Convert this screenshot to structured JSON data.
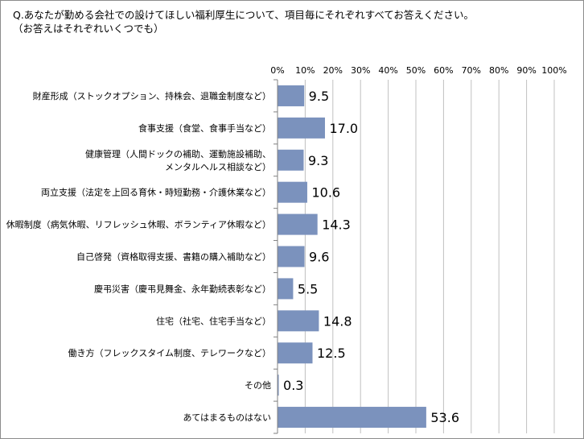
{
  "question": {
    "line1": "Q.あなたが勤める会社での設けてほしい福利厚生について、項目毎にそれぞれすべてお答えください。",
    "line2": "（お答えはそれぞれいくつでも）"
  },
  "chart_data": {
    "type": "bar",
    "orientation": "horizontal",
    "categories": [
      [
        "財産形成（ストックオプション、持株会、退職金制度など）"
      ],
      [
        "食事支援（食堂、食事手当など）"
      ],
      [
        "健康管理（人間ドックの補助、運動施設補助、",
        "メンタルヘルス相談など）"
      ],
      [
        "両立支援（法定を上回る育休・時短勤務・介護休業など）"
      ],
      [
        "休暇制度（病気休暇、リフレッシュ休暇、ボランティア休暇など）"
      ],
      [
        "自己啓発（資格取得支援、書籍の購入補助など）"
      ],
      [
        "慶弔災害（慶弔見舞金、永年勤続表彰など）"
      ],
      [
        "住宅（社宅、住宅手当など）"
      ],
      [
        "働き方（フレックスタイム制度、テレワークなど）"
      ],
      [
        "その他"
      ],
      [
        "あてはまるものはない"
      ]
    ],
    "values": [
      9.5,
      17.0,
      9.3,
      10.6,
      14.3,
      9.6,
      5.5,
      14.8,
      12.5,
      0.3,
      53.6
    ],
    "value_labels": [
      "9.5",
      "17.0",
      "9.3",
      "10.6",
      "14.3",
      "9.6",
      "5.5",
      "14.8",
      "12.5",
      "0.3",
      "53.6"
    ],
    "xlim": [
      0,
      100
    ],
    "x_ticks": [
      0,
      10,
      20,
      30,
      40,
      50,
      60,
      70,
      80,
      90,
      100
    ],
    "x_tick_labels": [
      "0%",
      "10%",
      "20%",
      "30%",
      "40%",
      "50%",
      "60%",
      "70%",
      "80%",
      "90%",
      "100%"
    ],
    "x_axis_position": "top",
    "grid": true,
    "bar_color": "#7b92bd",
    "grid_color": "#c0c0c0",
    "axis_color": "#808080"
  }
}
